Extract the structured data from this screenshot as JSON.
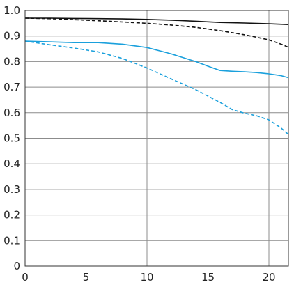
{
  "chart_data": {
    "type": "line",
    "title": "",
    "xlabel": "",
    "ylabel": "",
    "xlim": [
      0,
      21.6
    ],
    "ylim": [
      0,
      1.0
    ],
    "grid": true,
    "x_ticks": [
      "0",
      "5",
      "10",
      "15",
      "20"
    ],
    "y_ticks": [
      "0",
      "0.1",
      "0.2",
      "0.3",
      "0.4",
      "0.5",
      "0.6",
      "0.7",
      "0.8",
      "0.9",
      "1.0"
    ],
    "x_tick_values": [
      0,
      5,
      10,
      15,
      20
    ],
    "y_tick_values": [
      0,
      0.1,
      0.2,
      0.3,
      0.4,
      0.5,
      0.6,
      0.7,
      0.8,
      0.9,
      1.0
    ],
    "series": [
      {
        "color": "#111111",
        "dash": "solid",
        "x": [
          0,
          2,
          4,
          6,
          8,
          10,
          12,
          14,
          16,
          18,
          20,
          21.6
        ],
        "y": [
          0.97,
          0.97,
          0.969,
          0.968,
          0.967,
          0.965,
          0.962,
          0.958,
          0.953,
          0.951,
          0.948,
          0.945
        ]
      },
      {
        "color": "#111111",
        "dash": "dashed",
        "x": [
          0,
          2,
          4,
          6,
          8,
          10,
          12,
          14,
          16,
          18,
          19,
          20,
          21,
          21.6
        ],
        "y": [
          0.97,
          0.968,
          0.964,
          0.96,
          0.955,
          0.95,
          0.943,
          0.934,
          0.921,
          0.905,
          0.895,
          0.885,
          0.868,
          0.856
        ]
      },
      {
        "color": "#1aa0dc",
        "dash": "solid",
        "x": [
          0,
          2,
          4,
          6,
          8,
          10,
          12,
          14,
          15,
          16,
          17,
          18,
          19,
          20,
          21,
          21.6
        ],
        "y": [
          0.88,
          0.877,
          0.874,
          0.874,
          0.868,
          0.855,
          0.83,
          0.8,
          0.782,
          0.765,
          0.762,
          0.76,
          0.757,
          0.752,
          0.745,
          0.737
        ]
      },
      {
        "color": "#1aa0dc",
        "dash": "dashed",
        "x": [
          0,
          2,
          4,
          6,
          8,
          10,
          12,
          14,
          16,
          17,
          18,
          19,
          20,
          21,
          21.6
        ],
        "y": [
          0.88,
          0.866,
          0.853,
          0.838,
          0.812,
          0.775,
          0.732,
          0.69,
          0.64,
          0.612,
          0.598,
          0.588,
          0.572,
          0.54,
          0.515
        ]
      }
    ]
  }
}
